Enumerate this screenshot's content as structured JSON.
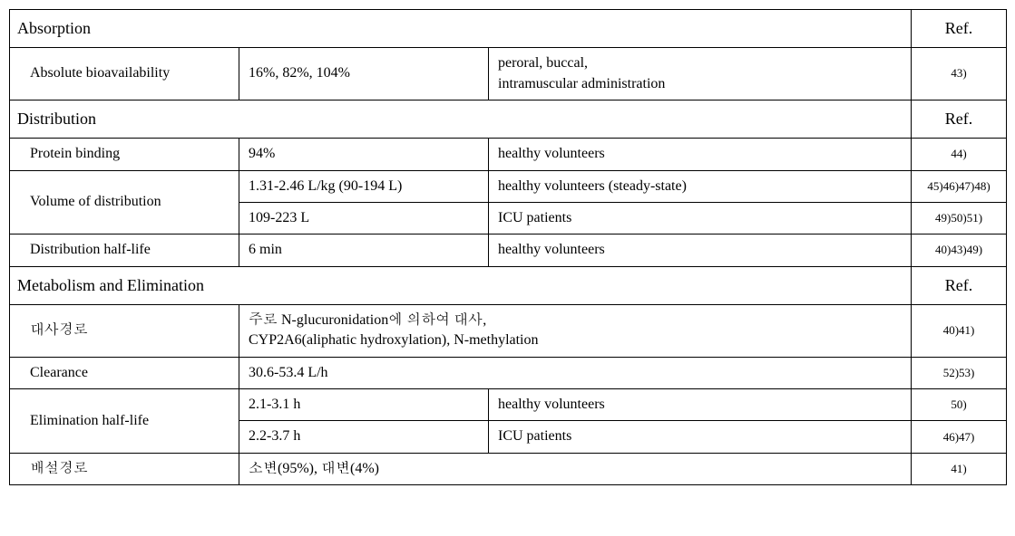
{
  "refLabel": "Ref.",
  "sections": {
    "absorption": {
      "title": "Absorption",
      "rows": [
        {
          "param": "Absolute bioavailability",
          "value": "16%, 82%, 104%",
          "cond": "peroral, buccal,\nintramuscular administration",
          "ref": "43)"
        }
      ]
    },
    "distribution": {
      "title": "Distribution",
      "rows": [
        {
          "param": "Protein binding",
          "value": "94%",
          "cond": "healthy volunteers",
          "ref": "44)"
        },
        {
          "param": "Volume of distribution",
          "value": "1.31-2.46 L/kg (90-194 L)",
          "cond": "healthy volunteers (steady-state)",
          "ref": "45)46)47)48)",
          "rowspanParam": 2
        },
        {
          "param": null,
          "value": "109-223 L",
          "cond": "ICU patients",
          "ref": "49)50)51)"
        },
        {
          "param": "Distribution half-life",
          "value": "6 min",
          "cond": "healthy volunteers",
          "ref": "40)43)49)"
        }
      ]
    },
    "metabolism": {
      "title": "Metabolism and Elimination",
      "rows": [
        {
          "param": "대사경로",
          "value": "주로 N-glucuronidation에 의하여 대사,\nCYP2A6(aliphatic hydroxylation), N-methylation",
          "cond": null,
          "ref": "40)41)",
          "colspanValue": 2
        },
        {
          "param": "Clearance",
          "value": "30.6-53.4 L/h",
          "cond": null,
          "ref": "52)53)",
          "colspanValue": 2
        },
        {
          "param": "Elimination half-life",
          "value": "2.1-3.1 h",
          "cond": "healthy volunteers",
          "ref": "50)",
          "rowspanParam": 2
        },
        {
          "param": null,
          "value": "2.2-3.7 h",
          "cond": "ICU patients",
          "ref": "46)47)"
        },
        {
          "param": "배설경로",
          "value": "소변(95%), 대변(4%)",
          "cond": null,
          "ref": "41)",
          "colspanValue": 2
        }
      ]
    }
  }
}
